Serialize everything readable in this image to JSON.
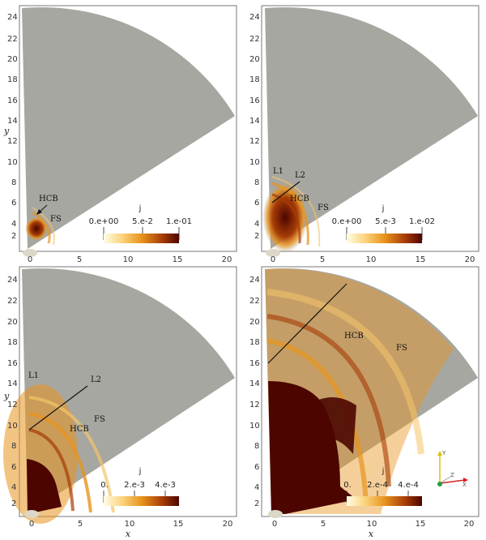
{
  "panels": [
    {
      "id": "top-left",
      "y_label": "y",
      "x_label": "",
      "y_ticks": [
        "24",
        "22",
        "20",
        "18",
        "16",
        "14",
        "12",
        "10",
        "8",
        "6",
        "4",
        "2"
      ],
      "x_ticks": [
        "0",
        "5",
        "10",
        "15",
        "20"
      ],
      "labels": [
        "HCB",
        "FS"
      ],
      "colorbar": {
        "title": "j",
        "ticks": [
          "0.e+00",
          "5.e-2",
          "1.e-01"
        ]
      }
    },
    {
      "id": "top-right",
      "y_label": "",
      "x_label": "",
      "y_ticks": [
        "24",
        "22",
        "20",
        "18",
        "16",
        "14",
        "12",
        "10",
        "8",
        "6",
        "4",
        "2"
      ],
      "x_ticks": [
        "0",
        "5",
        "10",
        "15",
        "20"
      ],
      "labels": [
        "L1",
        "L2",
        "HCB",
        "FS"
      ],
      "colorbar": {
        "title": "j",
        "ticks": [
          "0.e+00",
          "5.e-3",
          "1.e-02"
        ]
      }
    },
    {
      "id": "bottom-left",
      "y_label": "y",
      "x_label": "x",
      "y_ticks": [
        "24",
        "22",
        "20",
        "18",
        "16",
        "14",
        "12",
        "10",
        "8",
        "6",
        "4",
        "2"
      ],
      "x_ticks": [
        "0",
        "5",
        "10",
        "15",
        "20"
      ],
      "labels": [
        "L1",
        "L2",
        "HCB",
        "FS"
      ],
      "colorbar": {
        "title": "j",
        "ticks": [
          "0.",
          "2.e-3",
          "4.e-3"
        ]
      }
    },
    {
      "id": "bottom-right",
      "y_label": "",
      "x_label": "x",
      "y_ticks": [
        "24",
        "22",
        "20",
        "18",
        "16",
        "14",
        "12",
        "10",
        "8",
        "6",
        "4",
        "2"
      ],
      "x_ticks": [
        "0",
        "5",
        "10",
        "15",
        "20"
      ],
      "labels": [
        "HCB",
        "FS"
      ],
      "colorbar": {
        "title": "j",
        "ticks": [
          "0.",
          "2.e-4",
          "4.e-4"
        ]
      }
    }
  ],
  "colorbar_scale": [
    "10",
    "15"
  ],
  "triad": {
    "y": "Y",
    "z": "Z",
    "x": "X"
  },
  "colors": {
    "background_region": "#a7a7a1",
    "colormap": [
      "#fffde6",
      "#fbd27a",
      "#e8941e",
      "#a63c07",
      "#4d0500"
    ]
  }
}
